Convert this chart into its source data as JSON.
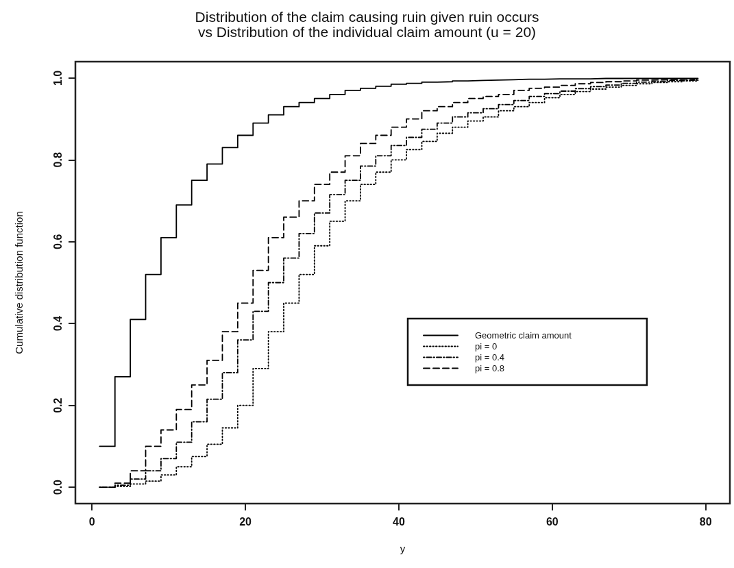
{
  "chart_data": {
    "type": "step",
    "title": "Distribution of the claim causing ruin given ruin occurs\nvs Distribution of the individual claim amount (u = 20)",
    "xlabel": "y",
    "ylabel": "Cumulative distribution function",
    "x": [
      1,
      3,
      5,
      7,
      9,
      11,
      13,
      15,
      17,
      19,
      21,
      23,
      25,
      27,
      29,
      31,
      33,
      35,
      37,
      39,
      41,
      43,
      45,
      47,
      49,
      51,
      53,
      55,
      57,
      59,
      61,
      63,
      65,
      67,
      69,
      71,
      73,
      75,
      77,
      79
    ],
    "series": [
      {
        "name": "Geometric claim amount",
        "color": "#000000",
        "line_style": "solid",
        "values": [
          0.1,
          0.27,
          0.41,
          0.52,
          0.61,
          0.69,
          0.75,
          0.79,
          0.83,
          0.86,
          0.89,
          0.91,
          0.93,
          0.94,
          0.95,
          0.96,
          0.97,
          0.975,
          0.98,
          0.985,
          0.987,
          0.99,
          0.991,
          0.993,
          0.994,
          0.995,
          0.996,
          0.997,
          0.997,
          0.998,
          0.998,
          0.998,
          0.999,
          0.999,
          0.999,
          0.999,
          0.999,
          0.999,
          0.999,
          0.999
        ]
      },
      {
        "name": "pi = 0",
        "color": "#000000",
        "line_style": "dotted",
        "values": [
          0,
          0.002,
          0.008,
          0.015,
          0.03,
          0.05,
          0.075,
          0.105,
          0.145,
          0.2,
          0.29,
          0.38,
          0.45,
          0.52,
          0.59,
          0.65,
          0.7,
          0.74,
          0.77,
          0.8,
          0.825,
          0.845,
          0.865,
          0.88,
          0.895,
          0.905,
          0.92,
          0.93,
          0.94,
          0.952,
          0.96,
          0.967,
          0.973,
          0.978,
          0.982,
          0.986,
          0.989,
          0.991,
          0.993,
          0.995
        ]
      },
      {
        "name": "pi = 0.4",
        "color": "#000000",
        "line_style": "dashdot",
        "values": [
          0,
          0.005,
          0.02,
          0.04,
          0.07,
          0.11,
          0.16,
          0.215,
          0.28,
          0.36,
          0.43,
          0.5,
          0.56,
          0.62,
          0.67,
          0.715,
          0.75,
          0.785,
          0.81,
          0.835,
          0.855,
          0.875,
          0.89,
          0.905,
          0.915,
          0.925,
          0.935,
          0.945,
          0.955,
          0.962,
          0.968,
          0.974,
          0.979,
          0.983,
          0.987,
          0.99,
          0.992,
          0.994,
          0.995,
          0.996
        ]
      },
      {
        "name": "pi = 0.8",
        "color": "#000000",
        "line_style": "dashed",
        "values": [
          0,
          0.01,
          0.04,
          0.1,
          0.14,
          0.19,
          0.25,
          0.31,
          0.38,
          0.45,
          0.53,
          0.61,
          0.66,
          0.7,
          0.74,
          0.77,
          0.81,
          0.84,
          0.86,
          0.88,
          0.9,
          0.92,
          0.93,
          0.94,
          0.95,
          0.955,
          0.96,
          0.97,
          0.975,
          0.978,
          0.982,
          0.986,
          0.989,
          0.991,
          0.993,
          0.995,
          0.996,
          0.997,
          0.998,
          0.998
        ]
      }
    ],
    "xlim": [
      -2.16,
      83.16
    ],
    "xticks": [
      0,
      20,
      40,
      60,
      80
    ],
    "ylim": [
      -0.04,
      1.04
    ],
    "yticks": [
      {
        "value": 0,
        "label": "0.0"
      },
      0.2,
      0.4,
      0.6,
      0.8,
      {
        "value": 1,
        "label": "1.0"
      }
    ],
    "grid": false,
    "legend": "bottom right",
    "marker": "none"
  }
}
